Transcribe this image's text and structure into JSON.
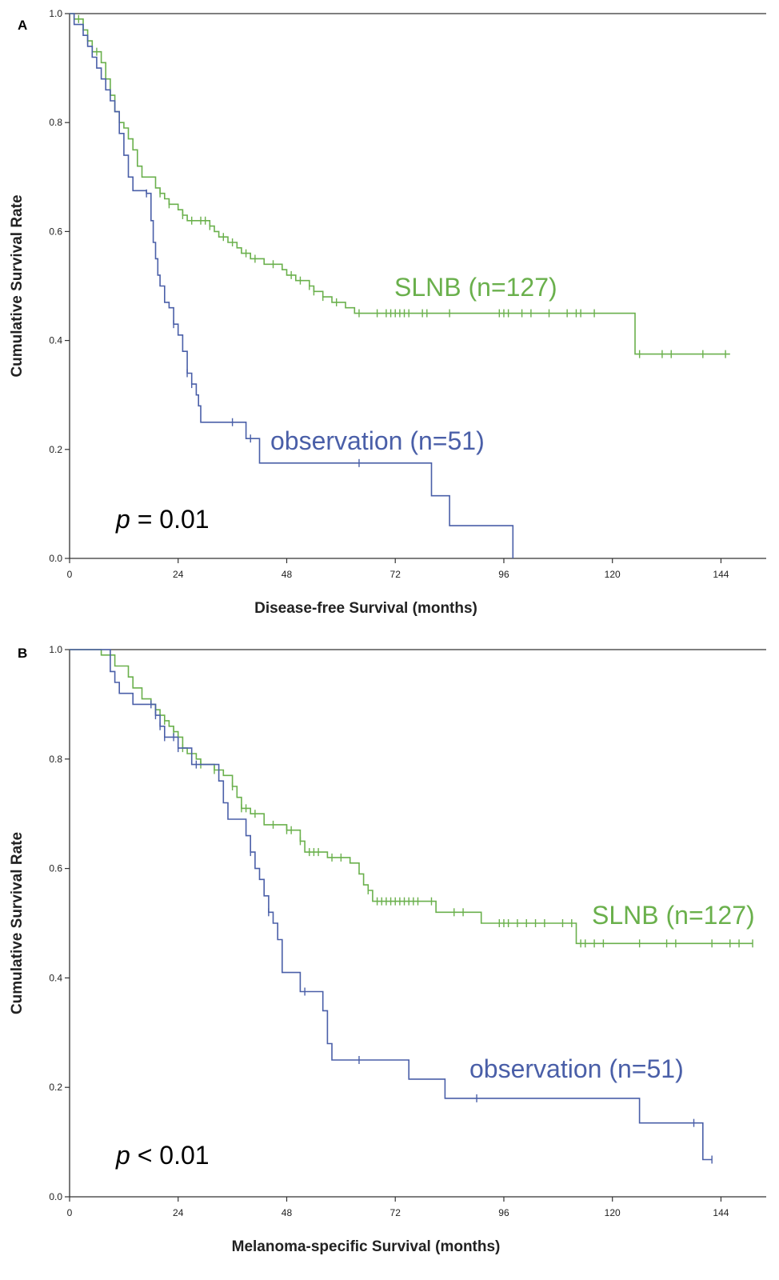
{
  "chart_data": [
    {
      "panel": "A",
      "type": "line",
      "xlabel": "Disease-free Survival (months)",
      "ylabel": "Cumulative Survival Rate",
      "xlim": [
        0,
        154
      ],
      "ylim": [
        0,
        1.0
      ],
      "x_ticks": [
        0,
        24,
        48,
        72,
        96,
        120,
        144
      ],
      "y_ticks": [
        0.0,
        0.2,
        0.4,
        0.6,
        0.8,
        1.0
      ],
      "annotation": {
        "italic": "p",
        "text": " = 0.01"
      },
      "series": [
        {
          "name": "SLNB (n=127)",
          "color": "#6ab04c",
          "step_points": [
            [
              0,
              1.0
            ],
            [
              1,
              0.99
            ],
            [
              3,
              0.97
            ],
            [
              4,
              0.95
            ],
            [
              5,
              0.93
            ],
            [
              7,
              0.91
            ],
            [
              8,
              0.88
            ],
            [
              9,
              0.85
            ],
            [
              10,
              0.82
            ],
            [
              11,
              0.8
            ],
            [
              12,
              0.79
            ],
            [
              13,
              0.77
            ],
            [
              14,
              0.75
            ],
            [
              15,
              0.72
            ],
            [
              16,
              0.7
            ],
            [
              19,
              0.68
            ],
            [
              20,
              0.67
            ],
            [
              21,
              0.66
            ],
            [
              22,
              0.65
            ],
            [
              24,
              0.64
            ],
            [
              25,
              0.63
            ],
            [
              26,
              0.62
            ],
            [
              31,
              0.61
            ],
            [
              32,
              0.6
            ],
            [
              33,
              0.59
            ],
            [
              35,
              0.58
            ],
            [
              37,
              0.57
            ],
            [
              38,
              0.56
            ],
            [
              40,
              0.55
            ],
            [
              43,
              0.54
            ],
            [
              47,
              0.53
            ],
            [
              48,
              0.52
            ],
            [
              50,
              0.51
            ],
            [
              53,
              0.5
            ],
            [
              54,
              0.49
            ],
            [
              56,
              0.48
            ],
            [
              58,
              0.47
            ],
            [
              61,
              0.46
            ],
            [
              63,
              0.45
            ],
            [
              125,
              0.45
            ],
            [
              125,
              0.375
            ],
            [
              146,
              0.375
            ]
          ],
          "censor_x": [
            2,
            4,
            6,
            20,
            22,
            25,
            27,
            29,
            30,
            31,
            34,
            36,
            39,
            41,
            45,
            49,
            51,
            53,
            54,
            56,
            59,
            64,
            68,
            70,
            71,
            72,
            73,
            74,
            75,
            78,
            79,
            84,
            95,
            96,
            97,
            100,
            102,
            106,
            110,
            112,
            113,
            116,
            126,
            131,
            133,
            140,
            145
          ]
        },
        {
          "name": "observation (n=51)",
          "color": "#4a5fa8",
          "step_points": [
            [
              0,
              1.0
            ],
            [
              1,
              0.98
            ],
            [
              3,
              0.96
            ],
            [
              4,
              0.94
            ],
            [
              5,
              0.92
            ],
            [
              6,
              0.9
            ],
            [
              7,
              0.88
            ],
            [
              8,
              0.86
            ],
            [
              9,
              0.84
            ],
            [
              10,
              0.82
            ],
            [
              11,
              0.78
            ],
            [
              12,
              0.74
            ],
            [
              13,
              0.7
            ],
            [
              14,
              0.675
            ],
            [
              17,
              0.67
            ],
            [
              18,
              0.62
            ],
            [
              18.5,
              0.58
            ],
            [
              19,
              0.55
            ],
            [
              19.5,
              0.52
            ],
            [
              20,
              0.5
            ],
            [
              21,
              0.47
            ],
            [
              22,
              0.46
            ],
            [
              23,
              0.43
            ],
            [
              24,
              0.41
            ],
            [
              25,
              0.38
            ],
            [
              26,
              0.34
            ],
            [
              27,
              0.32
            ],
            [
              28,
              0.3
            ],
            [
              28.5,
              0.28
            ],
            [
              29,
              0.25
            ],
            [
              38,
              0.25
            ],
            [
              39,
              0.22
            ],
            [
              42,
              0.22
            ],
            [
              42,
              0.175
            ],
            [
              80,
              0.175
            ],
            [
              80,
              0.115
            ],
            [
              84,
              0.115
            ],
            [
              84,
              0.06
            ],
            [
              98,
              0.06
            ],
            [
              98,
              0.0
            ]
          ],
          "censor_x": [
            17,
            23,
            26,
            27,
            36,
            40,
            64
          ]
        }
      ]
    },
    {
      "panel": "B",
      "type": "line",
      "xlabel": "Melanoma-specific Survival (months)",
      "ylabel": "Cumulative Survival Rate",
      "xlim": [
        0,
        154
      ],
      "ylim": [
        0,
        1.0
      ],
      "x_ticks": [
        0,
        24,
        48,
        72,
        96,
        120,
        144
      ],
      "y_ticks": [
        0.0,
        0.2,
        0.4,
        0.6,
        0.8,
        1.0
      ],
      "annotation": {
        "italic": "p",
        "text": " < 0.01"
      },
      "series": [
        {
          "name": "SLNB (n=127)",
          "color": "#6ab04c",
          "step_points": [
            [
              0,
              1.0
            ],
            [
              6,
              1.0
            ],
            [
              7,
              0.99
            ],
            [
              10,
              0.97
            ],
            [
              13,
              0.95
            ],
            [
              14,
              0.93
            ],
            [
              16,
              0.91
            ],
            [
              18,
              0.9
            ],
            [
              19,
              0.89
            ],
            [
              20,
              0.88
            ],
            [
              21,
              0.87
            ],
            [
              22,
              0.86
            ],
            [
              23,
              0.85
            ],
            [
              24,
              0.84
            ],
            [
              25,
              0.82
            ],
            [
              26,
              0.81
            ],
            [
              28,
              0.8
            ],
            [
              29,
              0.79
            ],
            [
              32,
              0.78
            ],
            [
              34,
              0.77
            ],
            [
              36,
              0.75
            ],
            [
              37,
              0.73
            ],
            [
              38,
              0.71
            ],
            [
              40,
              0.7
            ],
            [
              43,
              0.68
            ],
            [
              48,
              0.67
            ],
            [
              51,
              0.65
            ],
            [
              52,
              0.63
            ],
            [
              57,
              0.62
            ],
            [
              62,
              0.61
            ],
            [
              64,
              0.59
            ],
            [
              65,
              0.57
            ],
            [
              66,
              0.56
            ],
            [
              67,
              0.54
            ],
            [
              80,
              0.54
            ],
            [
              81,
              0.52
            ],
            [
              91,
              0.52
            ],
            [
              91,
              0.5
            ],
            [
              112,
              0.5
            ],
            [
              112,
              0.463
            ],
            [
              151,
              0.463
            ]
          ],
          "censor_x": [
            19,
            21,
            23,
            25,
            27,
            29,
            32,
            36,
            38,
            39,
            41,
            45,
            48,
            49,
            51,
            53,
            54,
            55,
            58,
            60,
            66,
            68,
            69,
            70,
            71,
            72,
            73,
            74,
            75,
            76,
            77,
            80,
            85,
            87,
            95,
            96,
            97,
            99,
            101,
            103,
            105,
            109,
            111,
            113,
            114,
            116,
            118,
            126,
            132,
            134,
            142,
            146,
            148,
            151
          ]
        },
        {
          "name": "observation (n=51)",
          "color": "#4a5fa8",
          "step_points": [
            [
              0,
              1.0
            ],
            [
              8,
              1.0
            ],
            [
              9,
              0.96
            ],
            [
              10,
              0.94
            ],
            [
              11,
              0.92
            ],
            [
              14,
              0.92
            ],
            [
              14,
              0.9
            ],
            [
              17,
              0.9
            ],
            [
              19,
              0.88
            ],
            [
              20,
              0.86
            ],
            [
              21,
              0.84
            ],
            [
              24,
              0.84
            ],
            [
              24,
              0.82
            ],
            [
              27,
              0.82
            ],
            [
              27,
              0.79
            ],
            [
              32,
              0.79
            ],
            [
              33,
              0.76
            ],
            [
              34,
              0.72
            ],
            [
              35,
              0.69
            ],
            [
              38,
              0.69
            ],
            [
              39,
              0.66
            ],
            [
              40,
              0.63
            ],
            [
              41,
              0.63
            ],
            [
              41,
              0.6
            ],
            [
              42,
              0.58
            ],
            [
              43,
              0.55
            ],
            [
              44,
              0.52
            ],
            [
              45,
              0.5
            ],
            [
              46,
              0.47
            ],
            [
              47,
              0.44
            ],
            [
              47,
              0.41
            ],
            [
              51,
              0.41
            ],
            [
              51,
              0.375
            ],
            [
              56,
              0.375
            ],
            [
              56,
              0.34
            ],
            [
              57,
              0.3
            ],
            [
              57,
              0.28
            ],
            [
              58,
              0.25
            ],
            [
              75,
              0.25
            ],
            [
              75,
              0.215
            ],
            [
              83,
              0.215
            ],
            [
              83,
              0.18
            ],
            [
              126,
              0.18
            ],
            [
              126,
              0.135
            ],
            [
              140,
              0.135
            ],
            [
              140,
              0.068
            ],
            [
              142,
              0.068
            ]
          ],
          "censor_x": [
            18,
            19,
            20,
            21,
            23,
            24,
            28,
            40,
            44,
            52,
            64,
            90,
            138,
            142
          ]
        }
      ]
    }
  ]
}
